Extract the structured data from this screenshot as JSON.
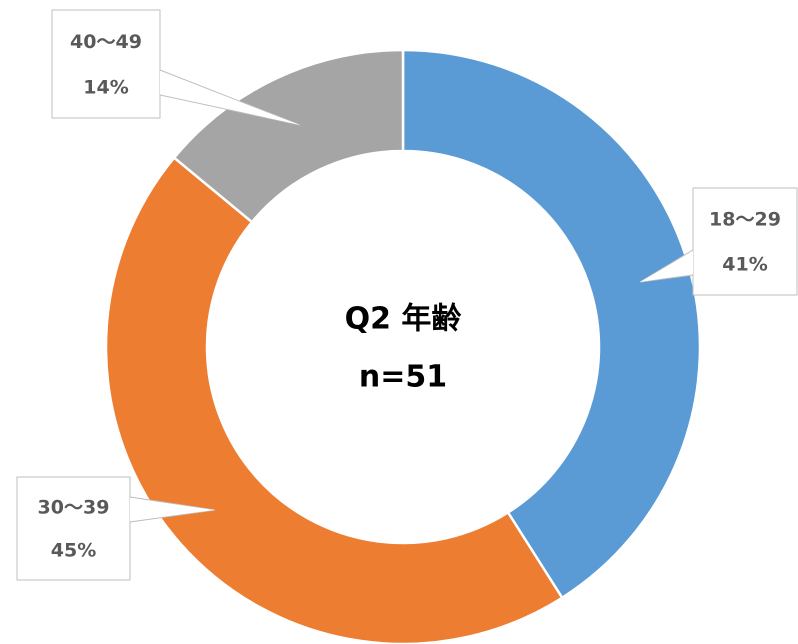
{
  "chart_data": {
    "type": "donut",
    "title": "Q2 年齢",
    "subtitle": "n=51",
    "categories": [
      "18～29",
      "30～39",
      "40～49"
    ],
    "values": [
      41,
      45,
      14
    ],
    "value_labels": [
      "41%",
      "45%",
      "14%"
    ],
    "colors": [
      "#5b9bd5",
      "#ed7d31",
      "#a5a5a5"
    ]
  }
}
